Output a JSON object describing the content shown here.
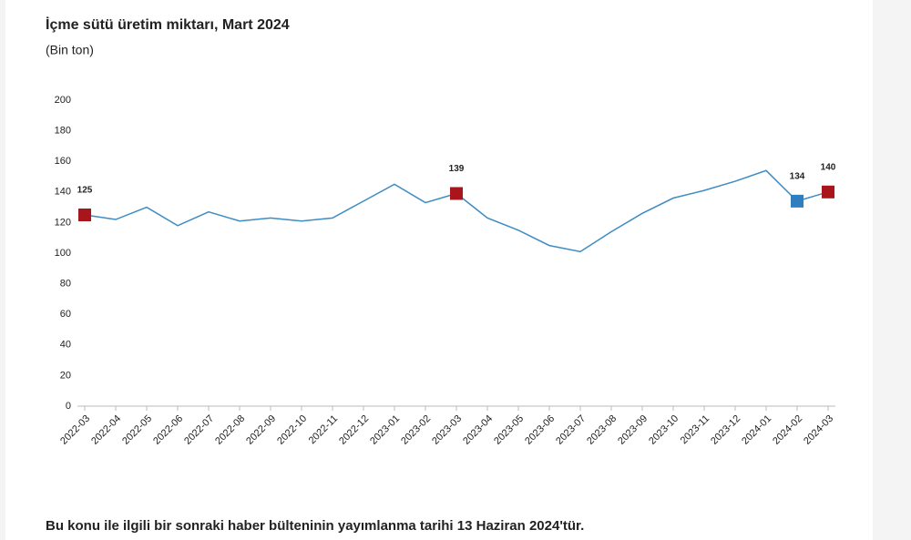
{
  "chart_data": {
    "type": "line",
    "title": "İçme sütü üretim miktarı, Mart 2024",
    "subtitle": "(Bin ton)",
    "categories": [
      "2022-03",
      "2022-04",
      "2022-05",
      "2022-06",
      "2022-07",
      "2022-08",
      "2022-09",
      "2022-10",
      "2022-11",
      "2022-12",
      "2023-01",
      "2023-02",
      "2023-03",
      "2023-04",
      "2023-05",
      "2023-06",
      "2023-07",
      "2023-08",
      "2023-09",
      "2023-10",
      "2023-11",
      "2023-12",
      "2024-01",
      "2024-02",
      "2024-03"
    ],
    "values": [
      125,
      122,
      130,
      118,
      127,
      121,
      123,
      121,
      123,
      134,
      145,
      133,
      139,
      123,
      115,
      105,
      101,
      114,
      126,
      136,
      141,
      147,
      154,
      134,
      140
    ],
    "color": "#3d8cc4",
    "marker_colors": [
      "#a8151b",
      null,
      null,
      null,
      null,
      null,
      null,
      null,
      null,
      null,
      null,
      null,
      "#a8151b",
      null,
      null,
      null,
      null,
      null,
      null,
      null,
      null,
      null,
      null,
      "#2f7fc0",
      "#a8151b"
    ],
    "ylim": [
      0,
      200
    ],
    "yticks": [
      0,
      20,
      40,
      60,
      80,
      100,
      120,
      140,
      160,
      180,
      200
    ],
    "grid": false
  },
  "footer": "Bu konu ile ilgili bir sonraki haber bülteninin yayımlanma tarihi 13 Haziran 2024'tür."
}
